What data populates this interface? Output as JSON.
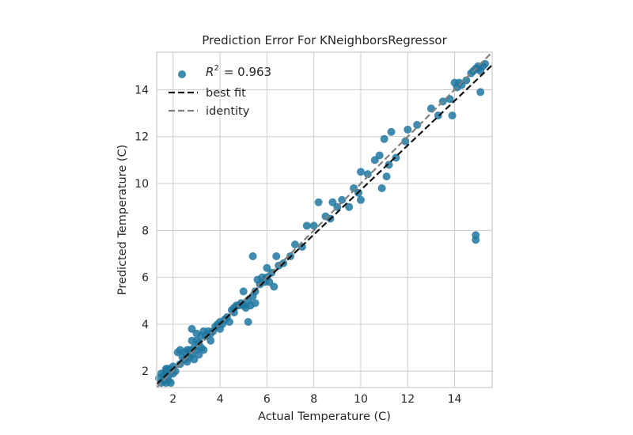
{
  "chart_data": {
    "type": "scatter",
    "title": "Prediction Error For KNeighborsRegressor",
    "xlabel": "Actual Temperature (C)",
    "ylabel": "Predicted Temperature (C)",
    "xlim": [
      1.3,
      15.6
    ],
    "ylim": [
      1.3,
      15.6
    ],
    "xticks": [
      2,
      4,
      6,
      8,
      10,
      12,
      14
    ],
    "yticks": [
      2,
      4,
      6,
      8,
      10,
      12,
      14
    ],
    "grid": true,
    "legend_position": "top-left",
    "colors": {
      "points": "#1f77a0",
      "best_fit": "#111111",
      "identity": "#808080",
      "grid": "#cccccc",
      "frame": "#cccccc"
    },
    "legend": {
      "r2_symbol": "R",
      "r2_exponent": "2",
      "r2_value": "= 0.963",
      "best_fit": "best fit",
      "identity": "identity"
    },
    "best_fit_line": {
      "x": [
        1.3,
        15.6
      ],
      "y": [
        1.45,
        15.05
      ]
    },
    "identity_line": {
      "x": [
        1.3,
        15.6
      ],
      "y": [
        1.3,
        15.6
      ]
    },
    "points": {
      "x": [
        1.4,
        1.5,
        1.5,
        1.6,
        1.6,
        1.7,
        1.7,
        1.7,
        1.8,
        1.8,
        1.8,
        1.9,
        1.9,
        2.0,
        2.0,
        2.1,
        2.2,
        2.3,
        2.3,
        2.4,
        2.5,
        2.5,
        2.6,
        2.6,
        2.7,
        2.7,
        2.8,
        2.8,
        2.8,
        2.9,
        2.9,
        3.0,
        3.0,
        3.0,
        3.1,
        3.1,
        3.2,
        3.2,
        3.3,
        3.3,
        3.4,
        3.5,
        3.6,
        3.6,
        3.7,
        3.8,
        3.9,
        4.0,
        4.0,
        4.1,
        4.2,
        4.3,
        4.4,
        4.5,
        4.6,
        4.6,
        4.7,
        4.8,
        4.9,
        5.0,
        5.0,
        5.1,
        5.2,
        5.2,
        5.3,
        5.4,
        5.4,
        5.5,
        5.5,
        5.6,
        5.7,
        5.8,
        5.9,
        6.0,
        6.0,
        6.1,
        6.2,
        6.3,
        6.4,
        6.5,
        6.7,
        7.0,
        7.2,
        7.5,
        7.7,
        8.0,
        8.2,
        8.5,
        8.7,
        8.8,
        9.0,
        9.2,
        9.5,
        9.7,
        9.9,
        10.0,
        10.0,
        10.3,
        10.6,
        10.8,
        10.9,
        11.0,
        11.1,
        11.2,
        11.3,
        11.5,
        11.9,
        12.0,
        12.4,
        13.0,
        13.3,
        13.5,
        13.8,
        13.9,
        14.0,
        14.1,
        14.2,
        14.3,
        14.5,
        14.7,
        14.8,
        14.9,
        15.0,
        15.0,
        15.1,
        15.2,
        15.3,
        14.9,
        14.9,
        15.1
      ],
      "y": [
        1.7,
        1.5,
        1.9,
        1.6,
        1.8,
        1.5,
        2.0,
        2.1,
        1.6,
        1.8,
        2.1,
        1.5,
        2.0,
        1.9,
        2.2,
        2.0,
        2.8,
        2.3,
        2.9,
        2.6,
        2.5,
        2.8,
        2.4,
        2.9,
        2.6,
        2.9,
        2.7,
        3.3,
        3.8,
        2.5,
        3.0,
        2.9,
        3.3,
        3.6,
        2.7,
        3.2,
        3.0,
        3.5,
        2.9,
        3.7,
        3.5,
        3.7,
        3.6,
        3.3,
        3.7,
        3.9,
        4.0,
        3.8,
        4.1,
        4.0,
        4.2,
        4.3,
        4.1,
        4.6,
        4.5,
        4.7,
        4.8,
        4.8,
        4.9,
        4.8,
        5.4,
        4.7,
        4.1,
        5.0,
        4.8,
        5.2,
        6.9,
        4.9,
        5.4,
        5.9,
        5.7,
        6.0,
        5.8,
        6.0,
        6.4,
        5.8,
        6.2,
        5.6,
        6.9,
        6.5,
        6.6,
        6.9,
        7.4,
        7.3,
        8.2,
        8.2,
        9.2,
        8.6,
        8.5,
        9.2,
        9.0,
        9.3,
        9.0,
        9.8,
        9.6,
        9.3,
        10.5,
        10.4,
        11.0,
        11.2,
        9.8,
        11.9,
        10.3,
        10.8,
        12.2,
        11.1,
        11.8,
        12.3,
        12.5,
        13.2,
        12.9,
        13.5,
        13.6,
        12.9,
        14.3,
        14.1,
        14.3,
        14.2,
        14.4,
        14.7,
        14.8,
        14.9,
        15.0,
        14.9,
        13.9,
        15.0,
        15.1,
        7.6,
        7.8,
        14.8
      ]
    }
  }
}
